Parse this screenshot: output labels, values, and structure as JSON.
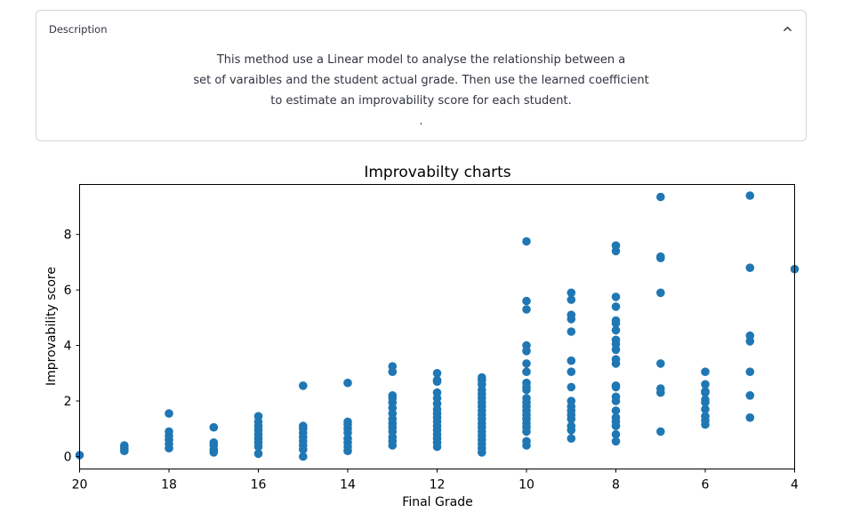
{
  "expander": {
    "header": "Description",
    "lines": [
      "This method use a Linear model to analyse the relationship between a",
      "set of varaibles and the student actual grade. Then use the learned coefficient",
      "to estimate an improvability score for each student.",
      "."
    ]
  },
  "colors": {
    "marker": "#1f77b4",
    "axis": "#000000",
    "border": "#d6d6d9"
  },
  "chart_data": {
    "type": "scatter",
    "title": "Improvabilty charts",
    "xlabel": "Final Grade",
    "ylabel": "Improvability score",
    "xlim": [
      20,
      4
    ],
    "ylim": [
      -0.45,
      9.8
    ],
    "x_reversed": true,
    "grid": false,
    "xticks": [
      20,
      18,
      16,
      14,
      12,
      10,
      8,
      6,
      4
    ],
    "yticks": [
      0,
      2,
      4,
      6,
      8
    ],
    "points": [
      [
        20,
        0.05
      ],
      [
        19,
        0.2
      ],
      [
        19,
        0.3
      ],
      [
        19,
        0.4
      ],
      [
        18,
        0.3
      ],
      [
        18,
        0.45
      ],
      [
        18,
        0.6
      ],
      [
        18,
        0.75
      ],
      [
        18,
        0.9
      ],
      [
        18,
        1.55
      ],
      [
        17,
        0.15
      ],
      [
        17,
        0.25
      ],
      [
        17,
        0.4
      ],
      [
        17,
        0.5
      ],
      [
        17,
        1.05
      ],
      [
        16,
        0.1
      ],
      [
        16,
        0.35
      ],
      [
        16,
        0.5
      ],
      [
        16,
        0.65
      ],
      [
        16,
        0.8
      ],
      [
        16,
        0.95
      ],
      [
        16,
        1.1
      ],
      [
        16,
        1.25
      ],
      [
        16,
        1.45
      ],
      [
        15,
        0.0
      ],
      [
        15,
        0.25
      ],
      [
        15,
        0.4
      ],
      [
        15,
        0.55
      ],
      [
        15,
        0.7
      ],
      [
        15,
        0.85
      ],
      [
        15,
        1.0
      ],
      [
        15,
        1.1
      ],
      [
        15,
        2.55
      ],
      [
        14,
        0.2
      ],
      [
        14,
        0.35
      ],
      [
        14,
        0.5
      ],
      [
        14,
        0.65
      ],
      [
        14,
        0.85
      ],
      [
        14,
        1.0
      ],
      [
        14,
        1.15
      ],
      [
        14,
        1.25
      ],
      [
        14,
        2.65
      ],
      [
        13,
        0.4
      ],
      [
        13,
        0.55
      ],
      [
        13,
        0.7
      ],
      [
        13,
        0.9
      ],
      [
        13,
        1.05
      ],
      [
        13,
        1.2
      ],
      [
        13,
        1.35
      ],
      [
        13,
        1.55
      ],
      [
        13,
        1.75
      ],
      [
        13,
        1.95
      ],
      [
        13,
        2.1
      ],
      [
        13,
        2.2
      ],
      [
        13,
        3.05
      ],
      [
        13,
        3.25
      ],
      [
        12,
        0.35
      ],
      [
        12,
        0.5
      ],
      [
        12,
        0.65
      ],
      [
        12,
        0.8
      ],
      [
        12,
        0.95
      ],
      [
        12,
        1.1
      ],
      [
        12,
        1.25
      ],
      [
        12,
        1.4
      ],
      [
        12,
        1.55
      ],
      [
        12,
        1.7
      ],
      [
        12,
        1.9
      ],
      [
        12,
        2.1
      ],
      [
        12,
        2.3
      ],
      [
        12,
        2.7
      ],
      [
        12,
        2.75
      ],
      [
        12,
        3.0
      ],
      [
        11,
        0.15
      ],
      [
        11,
        0.3
      ],
      [
        11,
        0.45
      ],
      [
        11,
        0.6
      ],
      [
        11,
        0.75
      ],
      [
        11,
        0.9
      ],
      [
        11,
        1.05
      ],
      [
        11,
        1.2
      ],
      [
        11,
        1.35
      ],
      [
        11,
        1.5
      ],
      [
        11,
        1.65
      ],
      [
        11,
        1.8
      ],
      [
        11,
        1.95
      ],
      [
        11,
        2.1
      ],
      [
        11,
        2.25
      ],
      [
        11,
        2.4
      ],
      [
        11,
        2.6
      ],
      [
        11,
        2.75
      ],
      [
        11,
        2.85
      ],
      [
        10,
        0.4
      ],
      [
        10,
        0.55
      ],
      [
        10,
        0.9
      ],
      [
        10,
        1.05
      ],
      [
        10,
        1.2
      ],
      [
        10,
        1.35
      ],
      [
        10,
        1.5
      ],
      [
        10,
        1.65
      ],
      [
        10,
        1.8
      ],
      [
        10,
        1.95
      ],
      [
        10,
        2.1
      ],
      [
        10,
        2.4
      ],
      [
        10,
        2.5
      ],
      [
        10,
        2.65
      ],
      [
        10,
        3.05
      ],
      [
        10,
        3.35
      ],
      [
        10,
        3.8
      ],
      [
        10,
        4.0
      ],
      [
        10,
        5.3
      ],
      [
        10,
        5.6
      ],
      [
        10,
        7.75
      ],
      [
        9,
        0.65
      ],
      [
        9,
        0.95
      ],
      [
        9,
        1.1
      ],
      [
        9,
        1.35
      ],
      [
        9,
        1.5
      ],
      [
        9,
        1.65
      ],
      [
        9,
        1.8
      ],
      [
        9,
        2.0
      ],
      [
        9,
        2.5
      ],
      [
        9,
        3.05
      ],
      [
        9,
        3.45
      ],
      [
        9,
        4.5
      ],
      [
        9,
        4.95
      ],
      [
        9,
        5.1
      ],
      [
        9,
        5.65
      ],
      [
        9,
        5.9
      ],
      [
        8,
        0.55
      ],
      [
        8,
        0.8
      ],
      [
        8,
        1.1
      ],
      [
        8,
        1.25
      ],
      [
        8,
        1.4
      ],
      [
        8,
        1.65
      ],
      [
        8,
        2.0
      ],
      [
        8,
        2.15
      ],
      [
        8,
        2.5
      ],
      [
        8,
        2.55
      ],
      [
        8,
        3.35
      ],
      [
        8,
        3.5
      ],
      [
        8,
        3.85
      ],
      [
        8,
        4.05
      ],
      [
        8,
        4.2
      ],
      [
        8,
        4.55
      ],
      [
        8,
        4.8
      ],
      [
        8,
        4.9
      ],
      [
        8,
        5.4
      ],
      [
        8,
        5.75
      ],
      [
        8,
        7.4
      ],
      [
        8,
        7.6
      ],
      [
        7,
        0.9
      ],
      [
        7,
        2.3
      ],
      [
        7,
        2.45
      ],
      [
        7,
        3.35
      ],
      [
        7,
        5.9
      ],
      [
        7,
        7.15
      ],
      [
        7,
        7.2
      ],
      [
        7,
        9.35
      ],
      [
        6,
        1.15
      ],
      [
        6,
        1.3
      ],
      [
        6,
        1.45
      ],
      [
        6,
        1.7
      ],
      [
        6,
        1.95
      ],
      [
        6,
        2.05
      ],
      [
        6,
        2.3
      ],
      [
        6,
        2.35
      ],
      [
        6,
        2.6
      ],
      [
        6,
        3.05
      ],
      [
        5,
        1.4
      ],
      [
        5,
        2.2
      ],
      [
        5,
        3.05
      ],
      [
        5,
        4.15
      ],
      [
        5,
        4.35
      ],
      [
        5,
        6.8
      ],
      [
        5,
        9.4
      ],
      [
        4,
        6.75
      ]
    ]
  }
}
